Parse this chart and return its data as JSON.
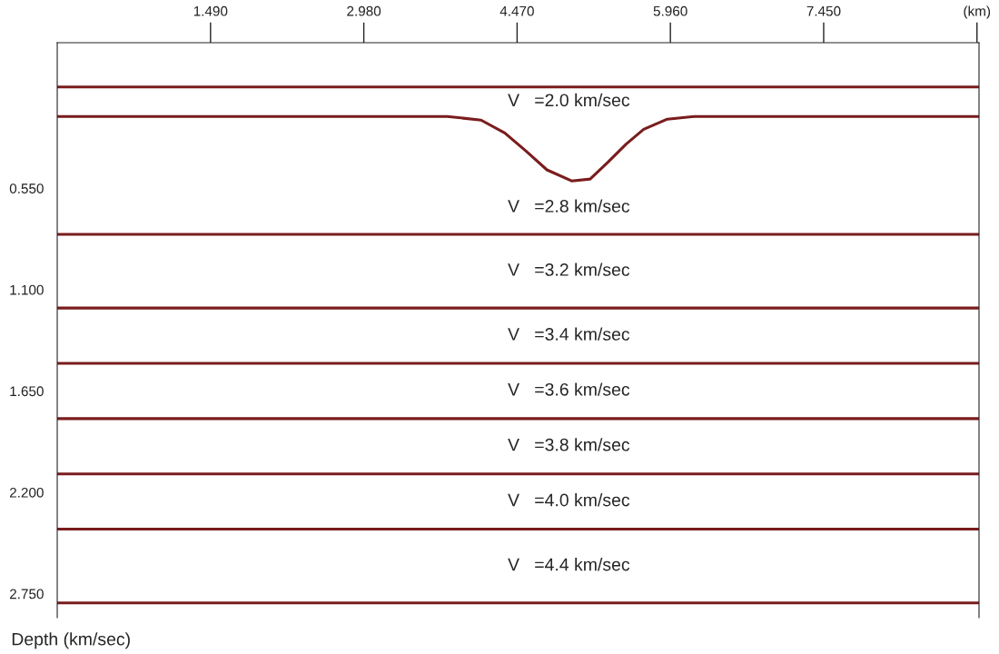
{
  "chart_data": {
    "type": "line",
    "xlabel": "(km)",
    "ylabel": "Depth (km/sec)",
    "xlim": [
      0,
      8.96
    ],
    "ylim": [
      2.88,
      -0.24
    ],
    "xticks": [
      {
        "value": 1.49,
        "label": "1.490"
      },
      {
        "value": 2.98,
        "label": "2.980"
      },
      {
        "value": 4.47,
        "label": "4.470"
      },
      {
        "value": 5.96,
        "label": "5.960"
      },
      {
        "value": 7.45,
        "label": "7.450"
      },
      {
        "value": 8.94,
        "label": "(km)"
      }
    ],
    "yticks": [
      {
        "value": 0.55,
        "label": "0.550"
      },
      {
        "value": 1.1,
        "label": "1.100"
      },
      {
        "value": 1.65,
        "label": "1.650"
      },
      {
        "value": 2.2,
        "label": "2.200"
      },
      {
        "value": 2.75,
        "label": "2.750"
      }
    ],
    "grid": false,
    "legend": false,
    "series": [
      {
        "color": "#7a1c1c",
        "x": [
          0,
          8.96
        ],
        "values": [
          0,
          0
        ]
      },
      {
        "color": "#7a1c1c",
        "x": [
          0,
          3.79,
          4.12,
          4.35,
          4.56,
          4.76,
          5.0,
          5.18,
          5.35,
          5.53,
          5.7,
          5.93,
          6.2,
          8.96
        ],
        "values": [
          0.16,
          0.16,
          0.18,
          0.25,
          0.35,
          0.45,
          0.51,
          0.5,
          0.41,
          0.31,
          0.23,
          0.175,
          0.16,
          0.16
        ]
      },
      {
        "color": "#7a1c1c",
        "x": [
          0,
          8.96
        ],
        "values": [
          0.8,
          0.8
        ]
      },
      {
        "color": "#7a1c1c",
        "x": [
          0,
          8.96
        ],
        "values": [
          1.2,
          1.2
        ]
      },
      {
        "color": "#7a1c1c",
        "x": [
          0,
          8.96
        ],
        "values": [
          1.5,
          1.5
        ]
      },
      {
        "color": "#7a1c1c",
        "x": [
          0,
          8.96
        ],
        "values": [
          1.8,
          1.8
        ]
      },
      {
        "color": "#7a1c1c",
        "x": [
          0,
          8.96
        ],
        "values": [
          2.1,
          2.1
        ]
      },
      {
        "color": "#7a1c1c",
        "x": [
          0,
          8.96
        ],
        "values": [
          2.4,
          2.4
        ]
      },
      {
        "color": "#7a1c1c",
        "x": [
          0,
          8.96
        ],
        "values": [
          2.8,
          2.8
        ]
      }
    ],
    "annotations": [
      "V   =2.0 km/sec",
      "V   =2.8 km/sec",
      "V   =3.2 km/sec",
      "V   =3.4 km/sec",
      "V   =3.6 km/sec",
      "V   =3.8 km/sec",
      "V   =4.0 km/sec",
      "V   =4.4 km/sec"
    ]
  }
}
